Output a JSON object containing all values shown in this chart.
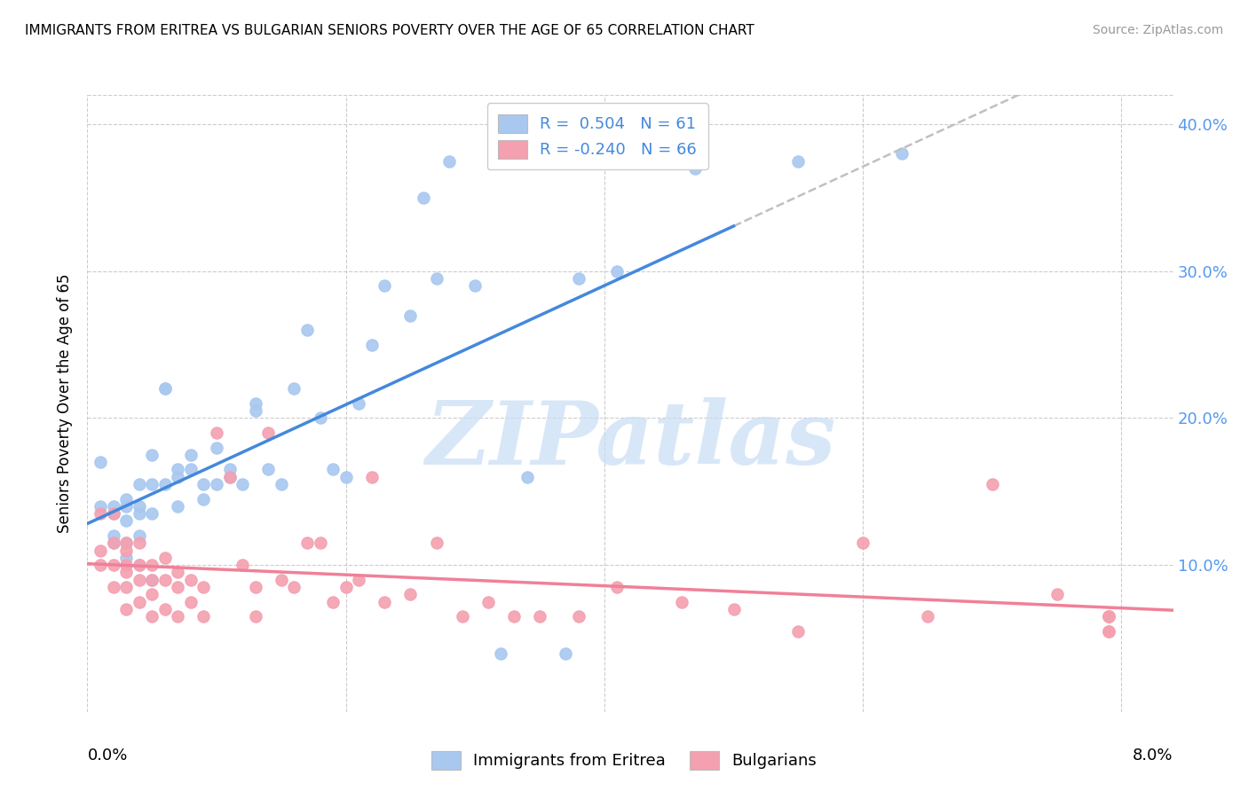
{
  "title": "IMMIGRANTS FROM ERITREA VS BULGARIAN SENIORS POVERTY OVER THE AGE OF 65 CORRELATION CHART",
  "source": "Source: ZipAtlas.com",
  "ylabel": "Seniors Poverty Over the Age of 65",
  "xmin": 0.0,
  "xmax": 0.08,
  "ymin": 0.0,
  "ymax": 0.42,
  "yticks": [
    0.1,
    0.2,
    0.3,
    0.4
  ],
  "ytick_labels": [
    "10.0%",
    "20.0%",
    "30.0%",
    "40.0%"
  ],
  "legend_eritrea_label": "R =  0.504   N = 61",
  "legend_bulgarian_label": "R = -0.240   N = 66",
  "legend_bottom_eritrea": "Immigrants from Eritrea",
  "legend_bottom_bulgarian": "Bulgarians",
  "eritrea_color": "#a8c8f0",
  "bulgarian_color": "#f4a0b0",
  "eritrea_line_color": "#4488dd",
  "bulgarian_line_color": "#f08098",
  "dashed_line_color": "#c0c0c0",
  "watermark": "ZIPatlas",
  "watermark_color": "#c8ddf5",
  "eritrea_scatter_x": [
    0.001,
    0.001,
    0.002,
    0.002,
    0.002,
    0.002,
    0.003,
    0.003,
    0.003,
    0.003,
    0.003,
    0.004,
    0.004,
    0.004,
    0.004,
    0.004,
    0.005,
    0.005,
    0.005,
    0.005,
    0.006,
    0.006,
    0.006,
    0.007,
    0.007,
    0.007,
    0.008,
    0.008,
    0.009,
    0.009,
    0.01,
    0.01,
    0.011,
    0.011,
    0.012,
    0.013,
    0.013,
    0.014,
    0.015,
    0.016,
    0.017,
    0.018,
    0.019,
    0.02,
    0.021,
    0.022,
    0.023,
    0.025,
    0.026,
    0.027,
    0.028,
    0.03,
    0.032,
    0.034,
    0.037,
    0.038,
    0.041,
    0.044,
    0.047,
    0.055,
    0.063
  ],
  "eritrea_scatter_y": [
    0.17,
    0.14,
    0.14,
    0.135,
    0.12,
    0.115,
    0.145,
    0.14,
    0.13,
    0.115,
    0.105,
    0.155,
    0.14,
    0.135,
    0.12,
    0.1,
    0.175,
    0.155,
    0.135,
    0.09,
    0.22,
    0.22,
    0.155,
    0.165,
    0.16,
    0.14,
    0.175,
    0.165,
    0.155,
    0.145,
    0.18,
    0.155,
    0.165,
    0.16,
    0.155,
    0.21,
    0.205,
    0.165,
    0.155,
    0.22,
    0.26,
    0.2,
    0.165,
    0.16,
    0.21,
    0.25,
    0.29,
    0.27,
    0.35,
    0.295,
    0.375,
    0.29,
    0.04,
    0.16,
    0.04,
    0.295,
    0.3,
    0.38,
    0.37,
    0.375,
    0.38
  ],
  "bulgarian_scatter_x": [
    0.001,
    0.001,
    0.001,
    0.002,
    0.002,
    0.002,
    0.002,
    0.003,
    0.003,
    0.003,
    0.003,
    0.003,
    0.003,
    0.004,
    0.004,
    0.004,
    0.004,
    0.005,
    0.005,
    0.005,
    0.005,
    0.006,
    0.006,
    0.006,
    0.007,
    0.007,
    0.007,
    0.008,
    0.008,
    0.009,
    0.009,
    0.01,
    0.011,
    0.012,
    0.013,
    0.013,
    0.014,
    0.015,
    0.016,
    0.017,
    0.018,
    0.019,
    0.02,
    0.021,
    0.022,
    0.023,
    0.025,
    0.027,
    0.029,
    0.031,
    0.033,
    0.035,
    0.038,
    0.041,
    0.046,
    0.05,
    0.055,
    0.06,
    0.065,
    0.07,
    0.075,
    0.079,
    0.079,
    0.079,
    0.079,
    0.079
  ],
  "bulgarian_scatter_y": [
    0.135,
    0.11,
    0.1,
    0.135,
    0.115,
    0.1,
    0.085,
    0.115,
    0.11,
    0.1,
    0.095,
    0.085,
    0.07,
    0.115,
    0.1,
    0.09,
    0.075,
    0.1,
    0.09,
    0.08,
    0.065,
    0.105,
    0.09,
    0.07,
    0.095,
    0.085,
    0.065,
    0.09,
    0.075,
    0.085,
    0.065,
    0.19,
    0.16,
    0.1,
    0.085,
    0.065,
    0.19,
    0.09,
    0.085,
    0.115,
    0.115,
    0.075,
    0.085,
    0.09,
    0.16,
    0.075,
    0.08,
    0.115,
    0.065,
    0.075,
    0.065,
    0.065,
    0.065,
    0.085,
    0.075,
    0.07,
    0.055,
    0.115,
    0.065,
    0.155,
    0.08,
    0.065,
    0.055,
    0.065,
    0.055,
    0.065
  ]
}
